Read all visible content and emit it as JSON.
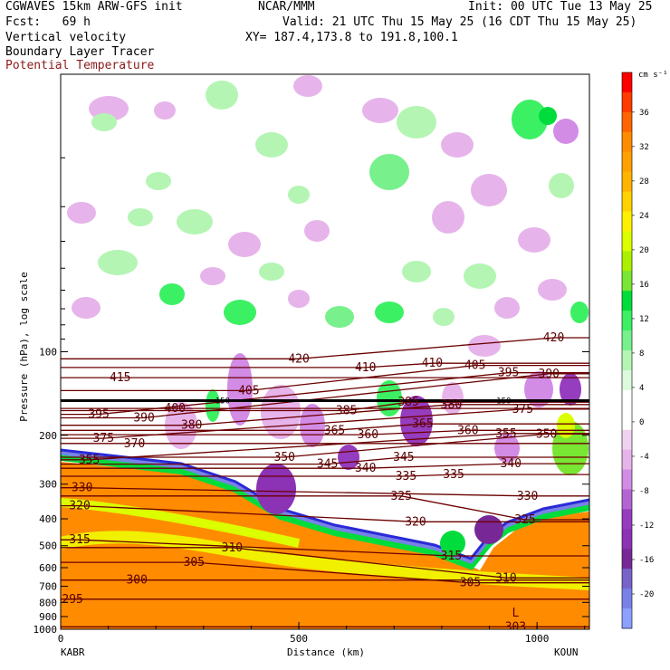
{
  "header": {
    "model": "CGWAVES 15km ARW-GFS init",
    "org": "NCAR/MMM",
    "init": "Init: 00 UTC Tue 13 May 25",
    "fcst_label": "Fcst:   69 h",
    "valid": "Valid: 21 UTC Thu 15 May 25 (16 CDT Thu 15 May 25)",
    "field1": "Vertical velocity",
    "xy": "XY= 187.4,173.8 to 191.8,100.1",
    "field2": "Boundary Layer Tracer",
    "field3": "Potential Temperature"
  },
  "colors": {
    "theta_contour": "#6b0000",
    "field3_text": "#8b1a1a"
  },
  "chart_data": {
    "type": "heatmap",
    "xlabel": "Distance (km)",
    "ylabel": "Pressure (hPa), log scale",
    "x_ticks": [
      "0",
      "500",
      "1000"
    ],
    "x_tick_values": [
      0,
      500,
      1000
    ],
    "xlim": [
      0,
      1110
    ],
    "y_ticks": [
      "100",
      "200",
      "300",
      "400",
      "500",
      "600",
      "700",
      "800",
      "900",
      "1000"
    ],
    "y_tick_values": [
      100,
      200,
      300,
      400,
      500,
      600,
      700,
      800,
      900,
      1000
    ],
    "ylim": [
      1000,
      10
    ],
    "y_scale": "log",
    "endpoint_labels": [
      "KABR",
      "KOUN"
    ],
    "colorbar": {
      "unit": "cm s⁻¹",
      "tick_labels": [
        "36",
        "32",
        "28",
        "24",
        "20",
        "16",
        "12",
        "8",
        "4",
        "0",
        "-4",
        "-8",
        "-12",
        "-16",
        "-20"
      ],
      "colors": [
        "#ff0000",
        "#ff3c00",
        "#ff6400",
        "#ff8c00",
        "#ffa000",
        "#ffb400",
        "#ffd200",
        "#fff000",
        "#dcff00",
        "#aaf000",
        "#78e632",
        "#00dc3c",
        "#3cf064",
        "#78f08c",
        "#b4f5b4",
        "#dcfadc",
        "#ffffff",
        "#ffffff",
        "#f0d2f0",
        "#e6b4eb",
        "#d28ce6",
        "#b464d2",
        "#963cbe",
        "#8c32b4",
        "#782896",
        "#7864c8",
        "#7882e6",
        "#8ca0ff"
      ]
    },
    "tropopause_line_label": "150",
    "theta_contours": [
      {
        "value": 420,
        "labels": [
          [
            500,
            106
          ],
          [
            1035,
            89
          ]
        ]
      },
      {
        "value": 415,
        "labels": [
          [
            125,
            124
          ]
        ]
      },
      {
        "value": 410,
        "labels": [
          [
            640,
            114
          ],
          [
            780,
            110
          ]
        ]
      },
      {
        "value": 405,
        "labels": [
          [
            870,
            112
          ],
          [
            395,
            138
          ]
        ]
      },
      {
        "value": 400,
        "labels": [
          [
            240,
            160
          ]
        ]
      },
      {
        "value": 395,
        "labels": [
          [
            80,
            168
          ],
          [
            940,
            119
          ]
        ]
      },
      {
        "value": 390,
        "labels": [
          [
            175,
            173
          ],
          [
            1025,
            120
          ]
        ]
      },
      {
        "value": 385,
        "labels": [
          [
            600,
            163
          ],
          [
            730,
            152
          ]
        ]
      },
      {
        "value": 380,
        "labels": [
          [
            275,
            184
          ],
          [
            820,
            155
          ]
        ]
      },
      {
        "value": 375,
        "labels": [
          [
            90,
            205
          ],
          [
            970,
            161
          ]
        ]
      },
      {
        "value": 370,
        "labels": [
          [
            155,
            214
          ]
        ]
      },
      {
        "value": 365,
        "labels": [
          [
            575,
            192
          ],
          [
            760,
            182
          ]
        ]
      },
      {
        "value": 360,
        "labels": [
          [
            645,
            199
          ],
          [
            855,
            192
          ]
        ]
      },
      {
        "value": 355,
        "labels": [
          [
            60,
            245
          ],
          [
            935,
            197
          ]
        ]
      },
      {
        "value": 350,
        "labels": [
          [
            470,
            240
          ],
          [
            1020,
            198
          ]
        ]
      },
      {
        "value": 345,
        "labels": [
          [
            560,
            254
          ],
          [
            720,
            240
          ]
        ]
      },
      {
        "value": 340,
        "labels": [
          [
            640,
            263
          ],
          [
            945,
            253
          ]
        ]
      },
      {
        "value": 335,
        "labels": [
          [
            725,
            281
          ],
          [
            825,
            277
          ]
        ]
      },
      {
        "value": 330,
        "labels": [
          [
            45,
            309
          ],
          [
            980,
            331
          ]
        ]
      },
      {
        "value": 325,
        "labels": [
          [
            715,
            331
          ],
          [
            975,
            403
          ]
        ]
      },
      {
        "value": 320,
        "labels": [
          [
            40,
            359
          ],
          [
            745,
            410
          ]
        ]
      },
      {
        "value": 315,
        "labels": [
          [
            40,
            476
          ],
          [
            820,
            544
          ]
        ]
      },
      {
        "value": 310,
        "labels": [
          [
            360,
            508
          ],
          [
            935,
            653
          ]
        ]
      },
      {
        "value": 305,
        "labels": [
          [
            280,
            574
          ],
          [
            860,
            680
          ]
        ]
      },
      {
        "value": 300,
        "labels": [
          [
            160,
            665
          ]
        ]
      },
      {
        "value": 295,
        "labels": [
          [
            25,
            779
          ]
        ]
      },
      {
        "value": 303,
        "labels": [
          [
            955,
            980
          ]
        ]
      }
    ],
    "annotation_L": "L"
  }
}
